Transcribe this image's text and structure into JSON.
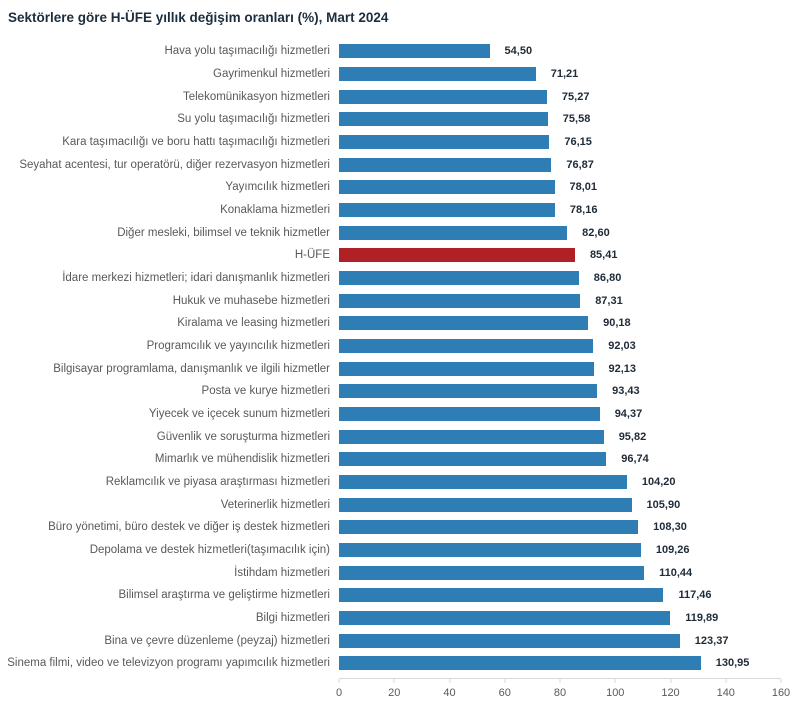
{
  "title": "Sektörlere göre H-ÜFE yıllık değişim oranları (%), Mart 2024",
  "colors": {
    "bar": "#2E7DB4",
    "highlight": "#B02126",
    "title": "#1C2E3D",
    "label": "#595959",
    "value": "#1F2B38",
    "axis_line": "#D9D9D9",
    "tick_label": "#595959"
  },
  "chart_data": {
    "type": "bar",
    "orientation": "horizontal",
    "title": "Sektörlere göre H-ÜFE yıllık değişim oranları (%), Mart 2024",
    "xlabel": "",
    "ylabel": "",
    "xlim": [
      0,
      160
    ],
    "x_ticks": [
      0,
      20,
      40,
      60,
      80,
      100,
      120,
      140,
      160
    ],
    "grid": false,
    "legend": false,
    "highlight_category": "H-ÜFE",
    "highlight_index": 9,
    "categories": [
      "Hava yolu taşımacılığı hizmetleri",
      "Gayrimenkul hizmetleri",
      "Telekomünikasyon hizmetleri",
      "Su yolu taşımacılığı hizmetleri",
      "Kara taşımacılığı ve boru hattı taşımacılığı hizmetleri",
      "Seyahat acentesi, tur operatörü, diğer rezervasyon hizmetleri",
      "Yayımcılık hizmetleri",
      "Konaklama hizmetleri",
      "Diğer mesleki, bilimsel ve teknik hizmetler",
      "H-ÜFE",
      "İdare merkezi hizmetleri; idari danışmanlık hizmetleri",
      "Hukuk ve muhasebe hizmetleri",
      "Kiralama ve leasing hizmetleri",
      "Programcılık ve yayıncılık hizmetleri",
      "Bilgisayar programlama, danışmanlık ve ilgili hizmetler",
      "Posta ve kurye hizmetleri",
      "Yiyecek ve içecek sunum hizmetleri",
      "Güvenlik ve soruşturma hizmetleri",
      "Mimarlık ve mühendislik hizmetleri",
      "Reklamcılık ve piyasa araştırması hizmetleri",
      "Veterinerlik hizmetleri",
      "Büro yönetimi, büro destek ve diğer iş destek hizmetleri",
      "Depolama ve destek hizmetleri(taşımacılık için)",
      "İstihdam hizmetleri",
      "Bilimsel araştırma ve geliştirme hizmetleri",
      "Bilgi hizmetleri",
      "Bina ve çevre düzenleme (peyzaj) hizmetleri",
      "Sinema filmi, video ve televizyon programı yapımcılık hizmetleri"
    ],
    "values": [
      54.5,
      71.21,
      75.27,
      75.58,
      76.15,
      76.87,
      78.01,
      78.16,
      82.6,
      85.41,
      86.8,
      87.31,
      90.18,
      92.03,
      92.13,
      93.43,
      94.37,
      95.82,
      96.74,
      104.2,
      105.9,
      108.3,
      109.26,
      110.44,
      117.46,
      119.89,
      123.37,
      130.95
    ],
    "value_labels": [
      "54,50",
      "71,21",
      "75,27",
      "75,58",
      "76,15",
      "76,87",
      "78,01",
      "78,16",
      "82,60",
      "85,41",
      "86,80",
      "87,31",
      "90,18",
      "92,03",
      "92,13",
      "93,43",
      "94,37",
      "95,82",
      "96,74",
      "104,20",
      "105,90",
      "108,30",
      "109,26",
      "110,44",
      "117,46",
      "119,89",
      "123,37",
      "130,95"
    ]
  }
}
